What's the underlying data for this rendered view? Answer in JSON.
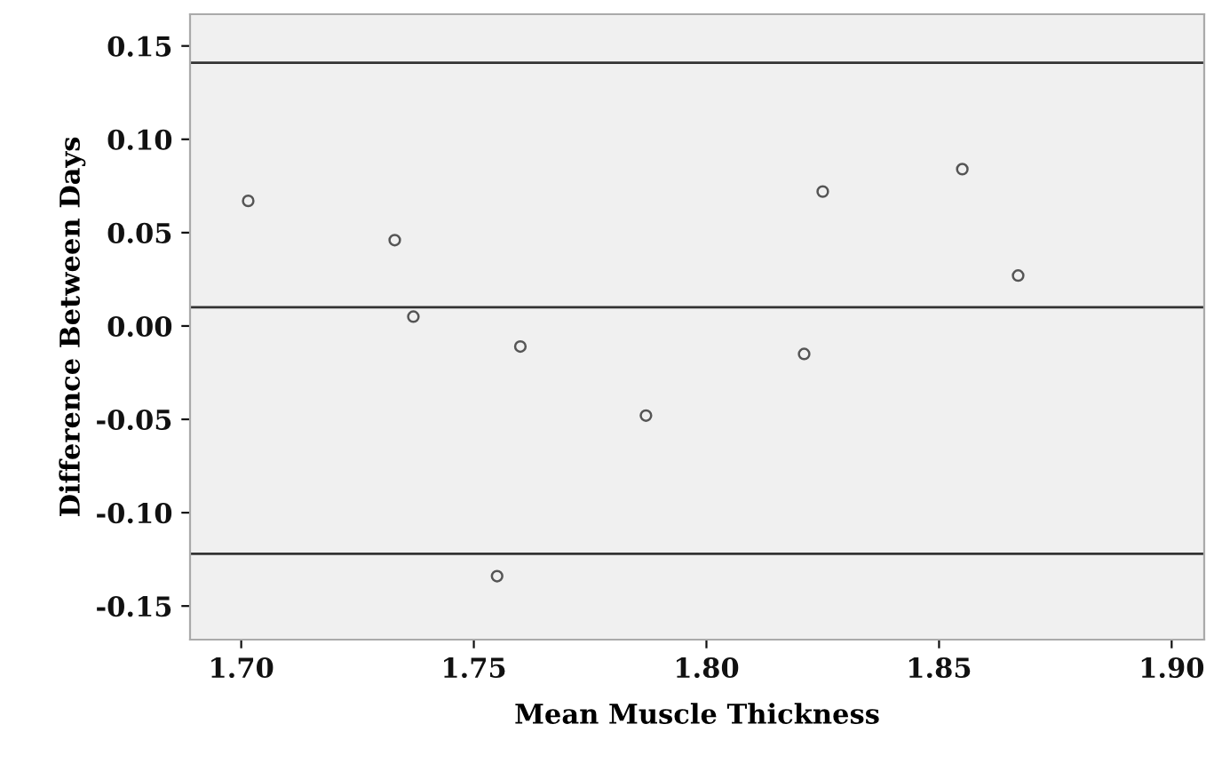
{
  "chart_data": {
    "type": "scatter",
    "xlabel": "Mean Muscle Thickness",
    "ylabel": "Difference Between Days",
    "x": [
      1.7015,
      1.733,
      1.737,
      1.755,
      1.76,
      1.787,
      1.821,
      1.825,
      1.855,
      1.867
    ],
    "values": [
      0.067,
      0.046,
      0.005,
      -0.134,
      -0.011,
      -0.048,
      -0.015,
      0.072,
      0.084,
      0.027
    ],
    "color": "#555555",
    "marker": "circle",
    "grid": false,
    "xlim": [
      1.689,
      1.907
    ],
    "xticks": [
      {
        "value": 1.7,
        "label": "1.70"
      },
      {
        "value": 1.75,
        "label": "1.75"
      },
      {
        "value": 1.8,
        "label": "1.80"
      },
      {
        "value": 1.85,
        "label": "1.85"
      },
      {
        "value": 1.9,
        "label": "1.90"
      }
    ],
    "ylim": [
      -0.168,
      0.167
    ],
    "yticks": [
      {
        "value": -0.15,
        "label": "-0.15"
      },
      {
        "value": -0.1,
        "label": "-0.10"
      },
      {
        "value": -0.05,
        "label": "-0.05"
      },
      {
        "value": 0.0,
        "label": "0.00"
      },
      {
        "value": 0.05,
        "label": "0.05"
      },
      {
        "value": 0.1,
        "label": "0.10"
      },
      {
        "value": 0.15,
        "label": "0.15"
      }
    ],
    "ref_lines": [
      {
        "axis": "y",
        "value": 0.141,
        "color": "#333333"
      },
      {
        "axis": "y",
        "value": 0.01,
        "color": "#333333"
      },
      {
        "axis": "y",
        "value": -0.122,
        "color": "#333333"
      }
    ]
  }
}
